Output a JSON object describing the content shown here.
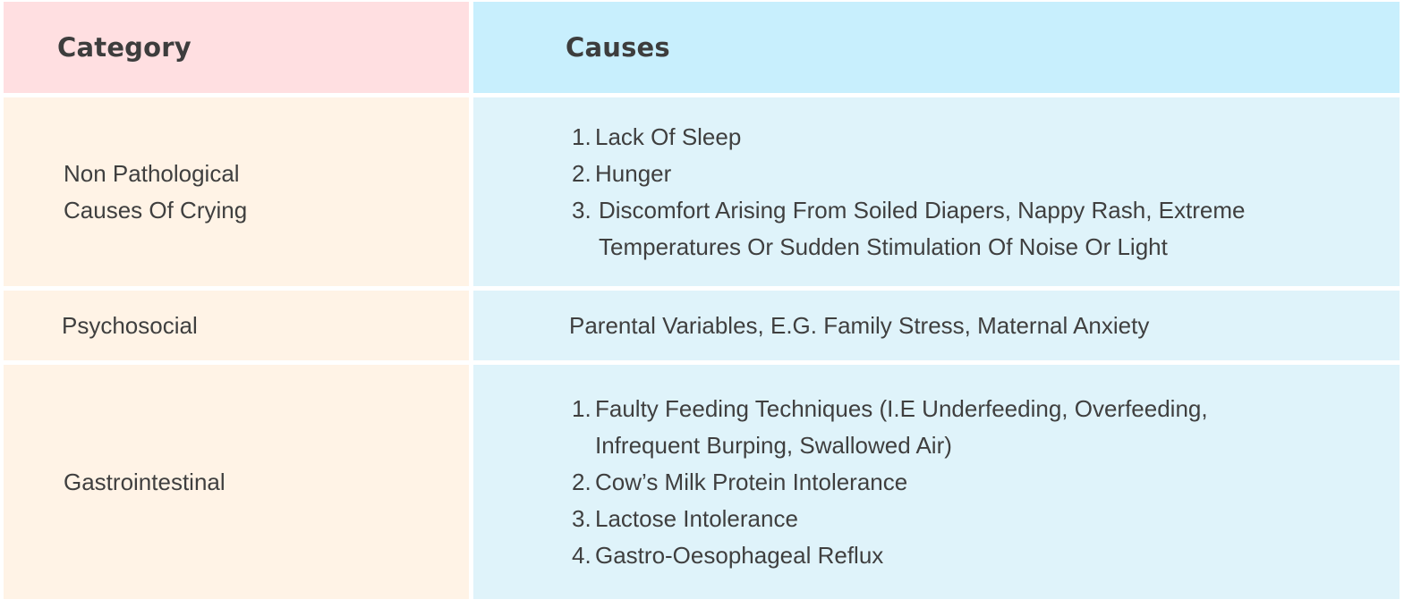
{
  "header": {
    "category_label": "Category",
    "causes_label": "Causes"
  },
  "rows": [
    {
      "category": "Non Pathological Causes Of Crying",
      "causes": [
        {
          "num": "1.",
          "text": "Lack Of Sleep"
        },
        {
          "num": "2.",
          "text": "Hunger"
        },
        {
          "num": "3.",
          "text": "Discomfort Arising From Soiled Diapers, Nappy Rash, Extreme Temperatures Or Sudden Stimulation Of Noise Or Light"
        }
      ]
    },
    {
      "category": "Psychosocial",
      "causes_text": "Parental Variables, E.G. Family Stress, Maternal Anxiety"
    },
    {
      "category": "Gastrointestinal",
      "causes": [
        {
          "num": "1.",
          "text": "Faulty Feeding Techniques (I.E Underfeeding, Overfeeding, Infrequent Burping, Swallowed Air)"
        },
        {
          "num": "2.",
          "text": "Cow’s Milk Protein Intolerance"
        },
        {
          "num": "3.",
          "text": "Lactose Intolerance"
        },
        {
          "num": "4.",
          "text": "Gastro-Oesophageal Reflux"
        }
      ]
    }
  ],
  "colors": {
    "header_category_bg": "#ffdfe1",
    "header_causes_bg": "#c8effd",
    "body_category_bg": "#fff3e6",
    "body_causes_bg": "#dff3fa",
    "text": "#3f3f3f"
  }
}
